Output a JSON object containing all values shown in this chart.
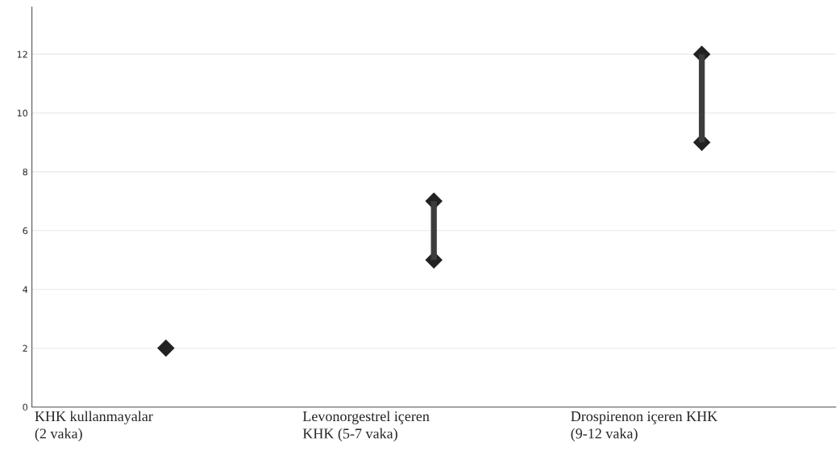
{
  "chart_data": {
    "type": "bar",
    "categories": [
      "KHK kullanmayalar\n(2 vaka)",
      "Levonorgestrel içeren\nKHK (5-7 vaka)",
      "Drospirenon içeren KHK\n(9-12 vaka)"
    ],
    "series": [
      {
        "base": [
          null,
          5,
          9
        ],
        "values": [
          null,
          2,
          3
        ],
        "color": "#3d3d3d"
      },
      {
        "type": "scatter",
        "values": [
          2,
          5,
          9
        ],
        "color": "#222222"
      },
      {
        "type": "scatter",
        "values": [
          null,
          7,
          12
        ],
        "color": "#222222"
      }
    ],
    "marker": "diamond",
    "ylim": [
      0,
      13.6
    ],
    "yticks": [
      0,
      2,
      4,
      6,
      8,
      10,
      12
    ],
    "grid": "y",
    "legend": false
  }
}
